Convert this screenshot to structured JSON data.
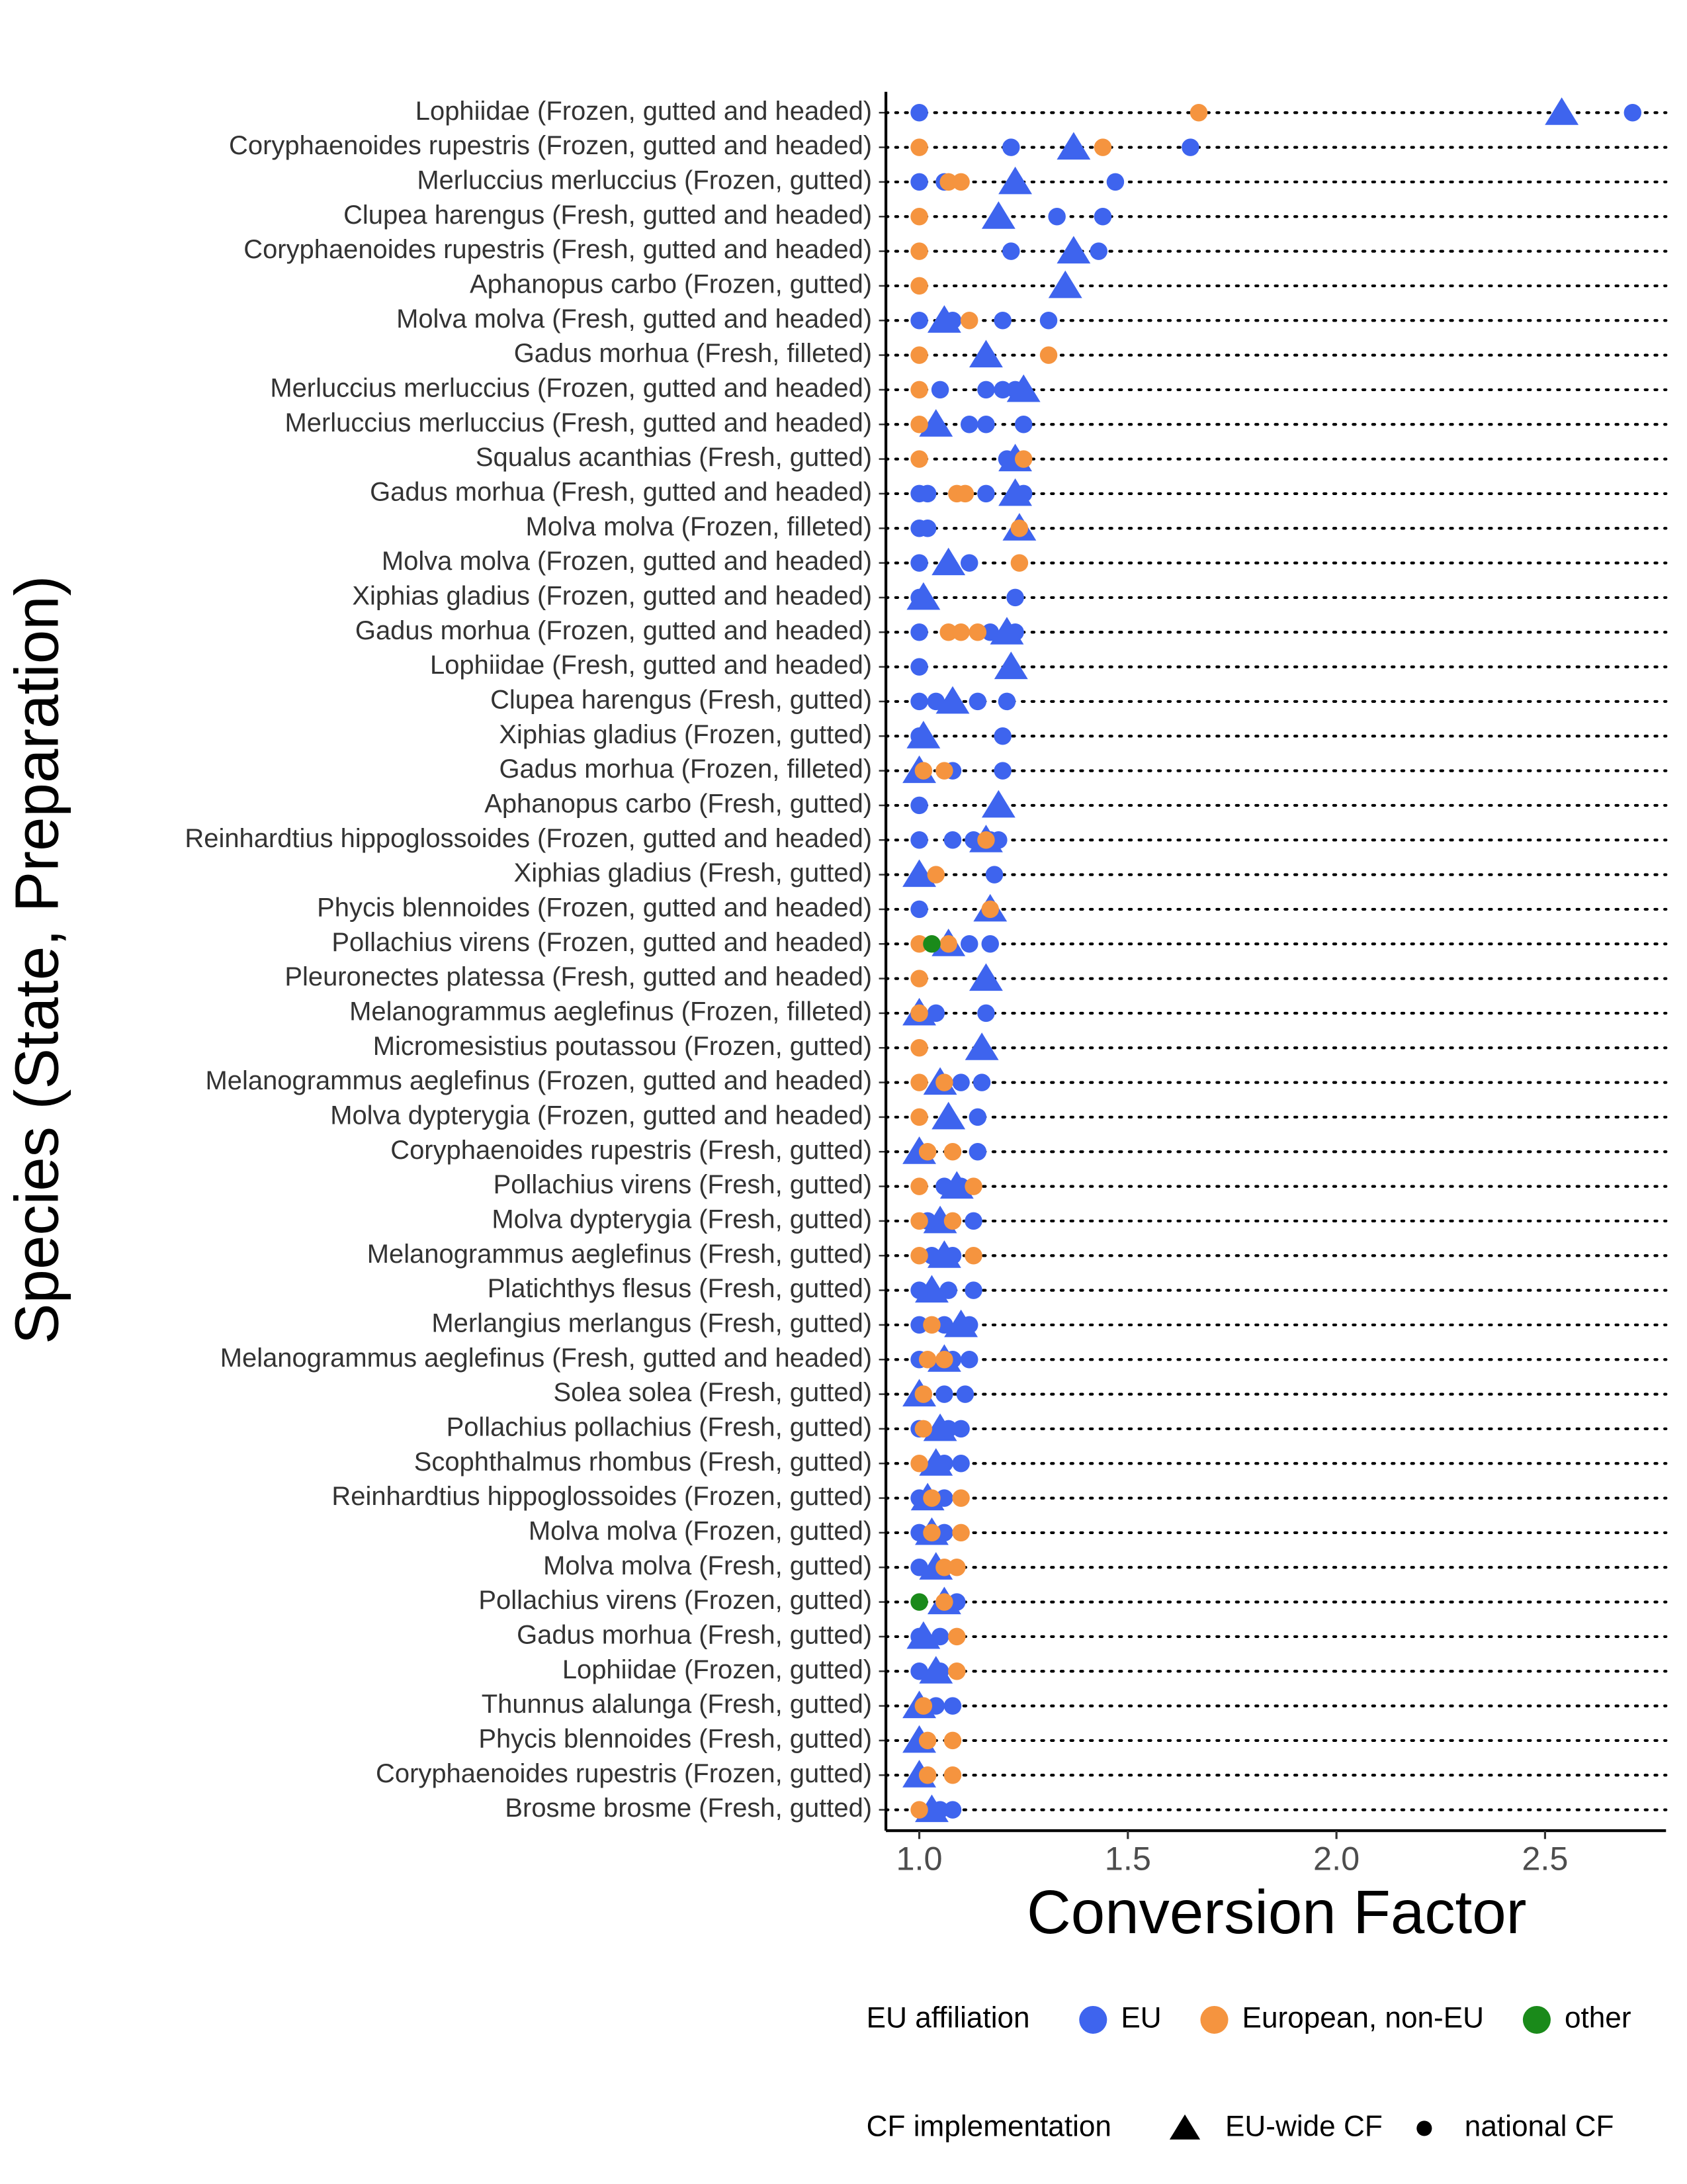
{
  "chart_data": {
    "type": "dot",
    "x_label": "Conversion Factor",
    "y_label": "Species (State, Preparation)",
    "xlim": [
      0.92,
      2.79
    ],
    "xticks": [
      {
        "value": 1,
        "label": "1.0"
      },
      {
        "value": 1.5,
        "label": "1.5"
      },
      {
        "value": 2,
        "label": "2.0"
      },
      {
        "value": 2.5,
        "label": "2.5"
      }
    ],
    "color_legend": {
      "title": "EU affiliation",
      "items": [
        {
          "name": "EU",
          "color": "#3e64ee"
        },
        {
          "name": "European, non-EU",
          "color": "#f5943f"
        },
        {
          "name": "other",
          "color": "#1a8a1a"
        }
      ]
    },
    "shape_legend": {
      "title": "CF implementation",
      "items": [
        {
          "name": "EU-wide CF",
          "shape": "triangle"
        },
        {
          "name": "national CF",
          "shape": "circle"
        }
      ]
    },
    "rows": [
      {
        "label": "Lophiidae (Frozen, gutted and headed)",
        "eu_wide": 2.54,
        "national": [
          [
            1.0,
            2.71
          ],
          [
            1.67
          ],
          []
        ]
      },
      {
        "label": "Coryphaenoides rupestris (Frozen, gutted and headed)",
        "eu_wide": 1.37,
        "national": [
          [
            1.22,
            1.65
          ],
          [
            1.0,
            1.44
          ],
          []
        ]
      },
      {
        "label": "Merluccius merluccius (Frozen, gutted)",
        "eu_wide": 1.23,
        "national": [
          [
            1.0,
            1.06,
            1.47
          ],
          [
            1.07,
            1.1
          ],
          []
        ]
      },
      {
        "label": "Clupea harengus (Fresh, gutted and headed)",
        "eu_wide": 1.19,
        "national": [
          [
            1.33,
            1.44
          ],
          [
            1.0
          ],
          []
        ]
      },
      {
        "label": "Coryphaenoides rupestris (Fresh, gutted and headed)",
        "eu_wide": 1.37,
        "national": [
          [
            1.22,
            1.43
          ],
          [
            1.0
          ],
          []
        ]
      },
      {
        "label": "Aphanopus carbo (Frozen, gutted)",
        "eu_wide": 1.35,
        "national": [
          [],
          [
            1.0
          ],
          []
        ]
      },
      {
        "label": "Molva molva (Fresh, gutted and headed)",
        "eu_wide": 1.06,
        "national": [
          [
            1.0,
            1.08,
            1.2,
            1.31
          ],
          [
            1.12
          ],
          []
        ]
      },
      {
        "label": "Gadus morhua (Fresh, filleted)",
        "eu_wide": 1.16,
        "national": [
          [],
          [
            1.0,
            1.31
          ],
          []
        ]
      },
      {
        "label": "Merluccius merluccius (Frozen, gutted and headed)",
        "eu_wide": 1.25,
        "national": [
          [
            1.05,
            1.16,
            1.2,
            1.23
          ],
          [
            1.0
          ],
          []
        ]
      },
      {
        "label": "Merluccius merluccius (Fresh, gutted and headed)",
        "eu_wide": 1.04,
        "national": [
          [
            1.12,
            1.16,
            1.25
          ],
          [
            1.0
          ],
          []
        ]
      },
      {
        "label": "Squalus acanthias (Fresh, gutted)",
        "eu_wide": 1.23,
        "national": [
          [
            1.21
          ],
          [
            1.0,
            1.25
          ],
          []
        ]
      },
      {
        "label": "Gadus morhua (Fresh, gutted and headed)",
        "eu_wide": 1.23,
        "national": [
          [
            1.0,
            1.02,
            1.16,
            1.25
          ],
          [
            1.09,
            1.11
          ],
          []
        ]
      },
      {
        "label": "Molva molva (Frozen, filleted)",
        "eu_wide": 1.24,
        "national": [
          [
            1.0,
            1.02
          ],
          [
            1.24
          ],
          []
        ]
      },
      {
        "label": "Molva molva (Frozen, gutted and headed)",
        "eu_wide": 1.07,
        "national": [
          [
            1.0,
            1.12
          ],
          [
            1.24
          ],
          []
        ]
      },
      {
        "label": "Xiphias gladius (Frozen, gutted and headed)",
        "eu_wide": 1.01,
        "national": [
          [
            1.0,
            1.23
          ],
          [],
          []
        ]
      },
      {
        "label": "Gadus morhua (Frozen, gutted and headed)",
        "eu_wide": 1.21,
        "national": [
          [
            1.0,
            1.17,
            1.23
          ],
          [
            1.07,
            1.1,
            1.14
          ],
          []
        ]
      },
      {
        "label": "Lophiidae (Fresh, gutted and headed)",
        "eu_wide": 1.22,
        "national": [
          [
            1.0
          ],
          [],
          []
        ]
      },
      {
        "label": "Clupea harengus (Fresh, gutted)",
        "eu_wide": 1.08,
        "national": [
          [
            1.0,
            1.04,
            1.14,
            1.21
          ],
          [],
          []
        ]
      },
      {
        "label": "Xiphias gladius (Frozen, gutted)",
        "eu_wide": 1.01,
        "national": [
          [
            1.0,
            1.2
          ],
          [],
          []
        ]
      },
      {
        "label": "Gadus morhua (Frozen, filleted)",
        "eu_wide": 1.0,
        "national": [
          [
            1.08,
            1.2
          ],
          [
            1.01,
            1.06
          ],
          []
        ]
      },
      {
        "label": "Aphanopus carbo (Fresh, gutted)",
        "eu_wide": 1.19,
        "national": [
          [
            1.0
          ],
          [],
          []
        ]
      },
      {
        "label": "Reinhardtius hippoglossoides (Frozen, gutted and headed)",
        "eu_wide": 1.16,
        "national": [
          [
            1.0,
            1.08,
            1.13,
            1.17,
            1.19
          ],
          [
            1.16
          ],
          []
        ]
      },
      {
        "label": "Xiphias gladius (Fresh, gutted)",
        "eu_wide": 1.0,
        "national": [
          [
            1.18
          ],
          [
            1.04
          ],
          []
        ]
      },
      {
        "label": "Phycis blennoides (Frozen, gutted and headed)",
        "eu_wide": 1.17,
        "national": [
          [
            1.0
          ],
          [
            1.17
          ],
          []
        ]
      },
      {
        "label": "Pollachius virens (Frozen, gutted and headed)",
        "eu_wide": 1.07,
        "national": [
          [
            1.12,
            1.17
          ],
          [
            1.0,
            1.07
          ],
          [
            1.03
          ]
        ]
      },
      {
        "label": "Pleuronectes platessa (Fresh, gutted and headed)",
        "eu_wide": 1.16,
        "national": [
          [],
          [
            1.0
          ],
          []
        ]
      },
      {
        "label": "Melanogrammus aeglefinus (Frozen, filleted)",
        "eu_wide": 1.0,
        "national": [
          [
            1.04,
            1.16
          ],
          [
            1.0
          ],
          []
        ]
      },
      {
        "label": "Micromesistius poutassou (Frozen, gutted)",
        "eu_wide": 1.15,
        "national": [
          [],
          [
            1.0
          ],
          []
        ]
      },
      {
        "label": "Melanogrammus aeglefinus (Frozen, gutted and headed)",
        "eu_wide": 1.05,
        "national": [
          [
            1.1,
            1.15
          ],
          [
            1.0,
            1.06
          ],
          []
        ]
      },
      {
        "label": "Molva dypterygia (Frozen, gutted and headed)",
        "eu_wide": 1.07,
        "national": [
          [
            1.14
          ],
          [
            1.0
          ],
          []
        ]
      },
      {
        "label": "Coryphaenoides rupestris (Fresh, gutted)",
        "eu_wide": 1.0,
        "national": [
          [
            1.14
          ],
          [
            1.02,
            1.08
          ],
          []
        ]
      },
      {
        "label": "Pollachius virens (Fresh, gutted)",
        "eu_wide": 1.09,
        "national": [
          [
            1.06,
            1.1
          ],
          [
            1.0,
            1.13
          ],
          []
        ]
      },
      {
        "label": "Molva dypterygia (Fresh, gutted)",
        "eu_wide": 1.05,
        "national": [
          [
            1.02,
            1.13
          ],
          [
            1.0,
            1.08
          ],
          []
        ]
      },
      {
        "label": "Melanogrammus aeglefinus (Fresh, gutted)",
        "eu_wide": 1.06,
        "national": [
          [
            1.03,
            1.08
          ],
          [
            1.0,
            1.13
          ],
          []
        ]
      },
      {
        "label": "Platichthys flesus (Fresh, gutted)",
        "eu_wide": 1.03,
        "national": [
          [
            1.0,
            1.07,
            1.13
          ],
          [],
          []
        ]
      },
      {
        "label": "Merlangius merlangus (Fresh, gutted)",
        "eu_wide": 1.1,
        "national": [
          [
            1.0,
            1.06,
            1.12
          ],
          [
            1.03
          ],
          []
        ]
      },
      {
        "label": "Melanogrammus aeglefinus (Fresh, gutted and headed)",
        "eu_wide": 1.06,
        "national": [
          [
            1.0,
            1.08,
            1.12
          ],
          [
            1.02,
            1.06
          ],
          []
        ]
      },
      {
        "label": "Solea solea (Fresh, gutted)",
        "eu_wide": 1.0,
        "national": [
          [
            1.06,
            1.11
          ],
          [
            1.01
          ],
          []
        ]
      },
      {
        "label": "Pollachius pollachius (Fresh, gutted)",
        "eu_wide": 1.05,
        "national": [
          [
            1.0,
            1.07,
            1.1
          ],
          [
            1.01
          ],
          []
        ]
      },
      {
        "label": "Scophthalmus rhombus (Fresh, gutted)",
        "eu_wide": 1.04,
        "national": [
          [
            1.06,
            1.1
          ],
          [
            1.0
          ],
          []
        ]
      },
      {
        "label": "Reinhardtius hippoglossoides (Frozen, gutted)",
        "eu_wide": 1.02,
        "national": [
          [
            1.0,
            1.06
          ],
          [
            1.03,
            1.1
          ],
          []
        ]
      },
      {
        "label": "Molva molva (Frozen, gutted)",
        "eu_wide": 1.03,
        "national": [
          [
            1.0,
            1.06
          ],
          [
            1.03,
            1.1
          ],
          []
        ]
      },
      {
        "label": "Molva molva (Fresh, gutted)",
        "eu_wide": 1.04,
        "national": [
          [
            1.0
          ],
          [
            1.06,
            1.09
          ],
          []
        ]
      },
      {
        "label": "Pollachius virens (Frozen, gutted)",
        "eu_wide": 1.06,
        "national": [
          [
            1.09
          ],
          [
            1.06
          ],
          [
            1.0
          ]
        ]
      },
      {
        "label": "Gadus morhua (Fresh, gutted)",
        "eu_wide": 1.01,
        "national": [
          [
            1.0,
            1.05
          ],
          [
            1.09
          ],
          []
        ]
      },
      {
        "label": "Lophiidae (Frozen, gutted)",
        "eu_wide": 1.04,
        "national": [
          [
            1.0,
            1.05
          ],
          [
            1.09
          ],
          []
        ]
      },
      {
        "label": "Thunnus alalunga (Fresh, gutted)",
        "eu_wide": 1.0,
        "national": [
          [
            1.04,
            1.08
          ],
          [
            1.01
          ],
          []
        ]
      },
      {
        "label": "Phycis blennoides (Fresh, gutted)",
        "eu_wide": 1.0,
        "national": [
          [],
          [
            1.02,
            1.08
          ],
          []
        ]
      },
      {
        "label": "Coryphaenoides rupestris (Frozen, gutted)",
        "eu_wide": 1.0,
        "national": [
          [],
          [
            1.02,
            1.08
          ],
          []
        ]
      },
      {
        "label": "Brosme brosme (Fresh, gutted)",
        "eu_wide": 1.03,
        "national": [
          [
            1.05,
            1.08
          ],
          [
            1.0
          ],
          []
        ]
      }
    ]
  }
}
